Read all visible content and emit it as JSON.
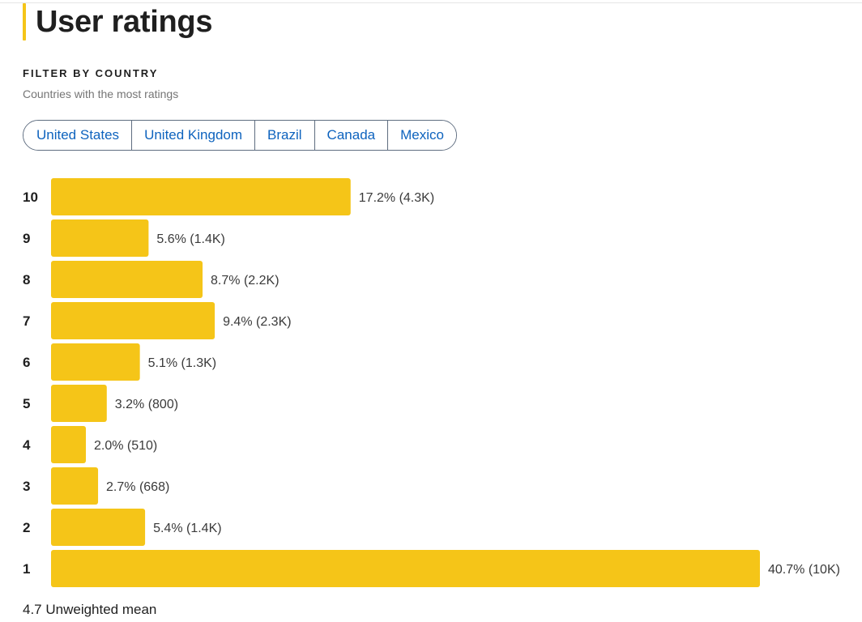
{
  "header": {
    "title": "User ratings"
  },
  "filter": {
    "label": "FILTER BY COUNTRY",
    "sublabel": "Countries with the most ratings",
    "chips": [
      "United States",
      "United Kingdom",
      "Brazil",
      "Canada",
      "Mexico"
    ]
  },
  "colors": {
    "bar": "#f5c518",
    "accent": "#f5c518",
    "link": "#0e63be"
  },
  "chart_data": {
    "type": "bar",
    "orientation": "horizontal",
    "categories": [
      "10",
      "9",
      "8",
      "7",
      "6",
      "5",
      "4",
      "3",
      "2",
      "1"
    ],
    "values": [
      17.2,
      5.6,
      8.7,
      9.4,
      5.1,
      3.2,
      2.0,
      2.7,
      5.4,
      40.7
    ],
    "value_labels": [
      "17.2% (4.3K)",
      "5.6% (1.4K)",
      "8.7% (2.2K)",
      "9.4% (2.3K)",
      "5.1% (1.3K)",
      "3.2% (800)",
      "2.0% (510)",
      "2.7% (668)",
      "5.4% (1.4K)",
      "40.7% (10K)"
    ],
    "grid": false,
    "legend": "none"
  },
  "footer": {
    "mean_text": "4.7 Unweighted mean"
  }
}
